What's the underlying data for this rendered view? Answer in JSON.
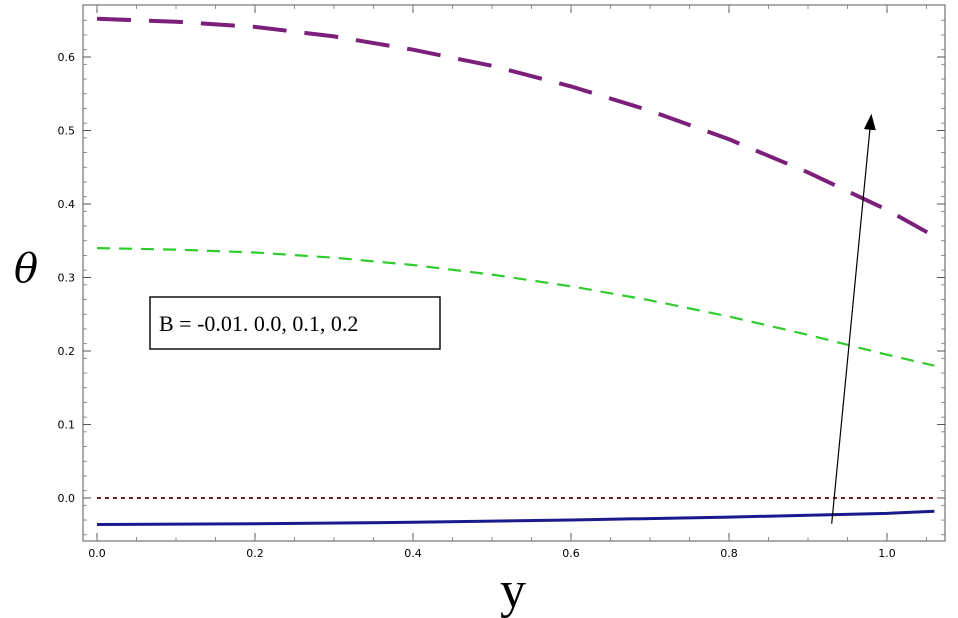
{
  "chart_data": {
    "type": "line",
    "title": "",
    "xlabel": "y",
    "ylabel": "θ",
    "xlim": [
      -0.02,
      1.07
    ],
    "ylim": [
      -0.06,
      0.66
    ],
    "x_ticks": [
      "0.0",
      "0.2",
      "0.4",
      "0.6",
      "0.8",
      "1.0"
    ],
    "y_ticks": [
      "0.0",
      "0.1",
      "0.2",
      "0.3",
      "0.4",
      "0.5",
      "0.6"
    ],
    "grid": false,
    "series": [
      {
        "color": "#1a1a8c",
        "style": "solid",
        "x": [
          0.0,
          0.2,
          0.4,
          0.6,
          0.8,
          1.0,
          1.06
        ],
        "y": [
          -0.036,
          -0.035,
          -0.033,
          -0.03,
          -0.026,
          -0.021,
          -0.018
        ]
      },
      {
        "color": "#7a1f1f",
        "style": "dotted",
        "x": [
          0.0,
          0.2,
          0.4,
          0.6,
          0.8,
          1.0,
          1.06
        ],
        "y": [
          0.0,
          0.0,
          0.0,
          0.0,
          0.0,
          0.0,
          0.0
        ]
      },
      {
        "color": "#2ecc2e",
        "style": "dashed",
        "x": [
          0.0,
          0.1,
          0.2,
          0.3,
          0.4,
          0.5,
          0.6,
          0.7,
          0.8,
          0.9,
          1.0,
          1.06
        ],
        "y": [
          0.34,
          0.338,
          0.334,
          0.327,
          0.317,
          0.304,
          0.288,
          0.269,
          0.247,
          0.222,
          0.195,
          0.18
        ]
      },
      {
        "color": "#7b1f7b",
        "style": "long-dashed",
        "x": [
          0.0,
          0.1,
          0.2,
          0.3,
          0.4,
          0.5,
          0.6,
          0.7,
          0.8,
          0.9,
          1.0,
          1.06
        ],
        "y": [
          0.652,
          0.648,
          0.641,
          0.628,
          0.61,
          0.588,
          0.56,
          0.527,
          0.488,
          0.443,
          0.392,
          0.356
        ]
      }
    ],
    "annotation": {
      "text": "B = -0.01. 0.0, 0.1, 0.2",
      "arrow": {
        "from": [
          0.93,
          -0.035
        ],
        "to": [
          0.98,
          0.52
        ]
      }
    }
  }
}
